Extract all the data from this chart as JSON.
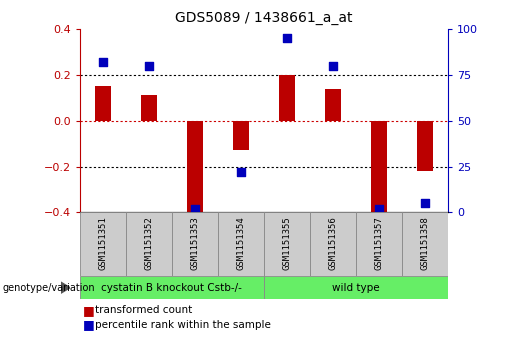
{
  "title": "GDS5089 / 1438661_a_at",
  "samples": [
    "GSM1151351",
    "GSM1151352",
    "GSM1151353",
    "GSM1151354",
    "GSM1151355",
    "GSM1151356",
    "GSM1151357",
    "GSM1151358"
  ],
  "transformed_count": [
    0.15,
    0.11,
    -0.41,
    -0.13,
    0.2,
    0.14,
    -0.41,
    -0.22
  ],
  "percentile_rank": [
    82,
    80,
    2,
    22,
    95,
    80,
    2,
    5
  ],
  "groups": [
    {
      "label": "cystatin B knockout Cstb-/-",
      "span": [
        0,
        3
      ],
      "color": "#66EE66"
    },
    {
      "label": "wild type",
      "span": [
        4,
        7
      ],
      "color": "#66EE66"
    }
  ],
  "group_row_label": "genotype/variation",
  "ylim_left": [
    -0.4,
    0.4
  ],
  "ylim_right": [
    0,
    100
  ],
  "yticks_left": [
    -0.4,
    -0.2,
    0.0,
    0.2,
    0.4
  ],
  "yticks_right": [
    0,
    25,
    50,
    75,
    100
  ],
  "bar_color": "#BB0000",
  "dot_color": "#0000BB",
  "hline_zero_color": "#CC0000",
  "hline_grid_color": "#000000",
  "bar_width": 0.35,
  "dot_size": 30,
  "legend_bar_label": "transformed count",
  "legend_dot_label": "percentile rank within the sample",
  "right_axis_color": "#0000BB",
  "left_axis_color": "#BB0000",
  "sample_box_color": "#CCCCCC",
  "bg_color": "#FFFFFF"
}
